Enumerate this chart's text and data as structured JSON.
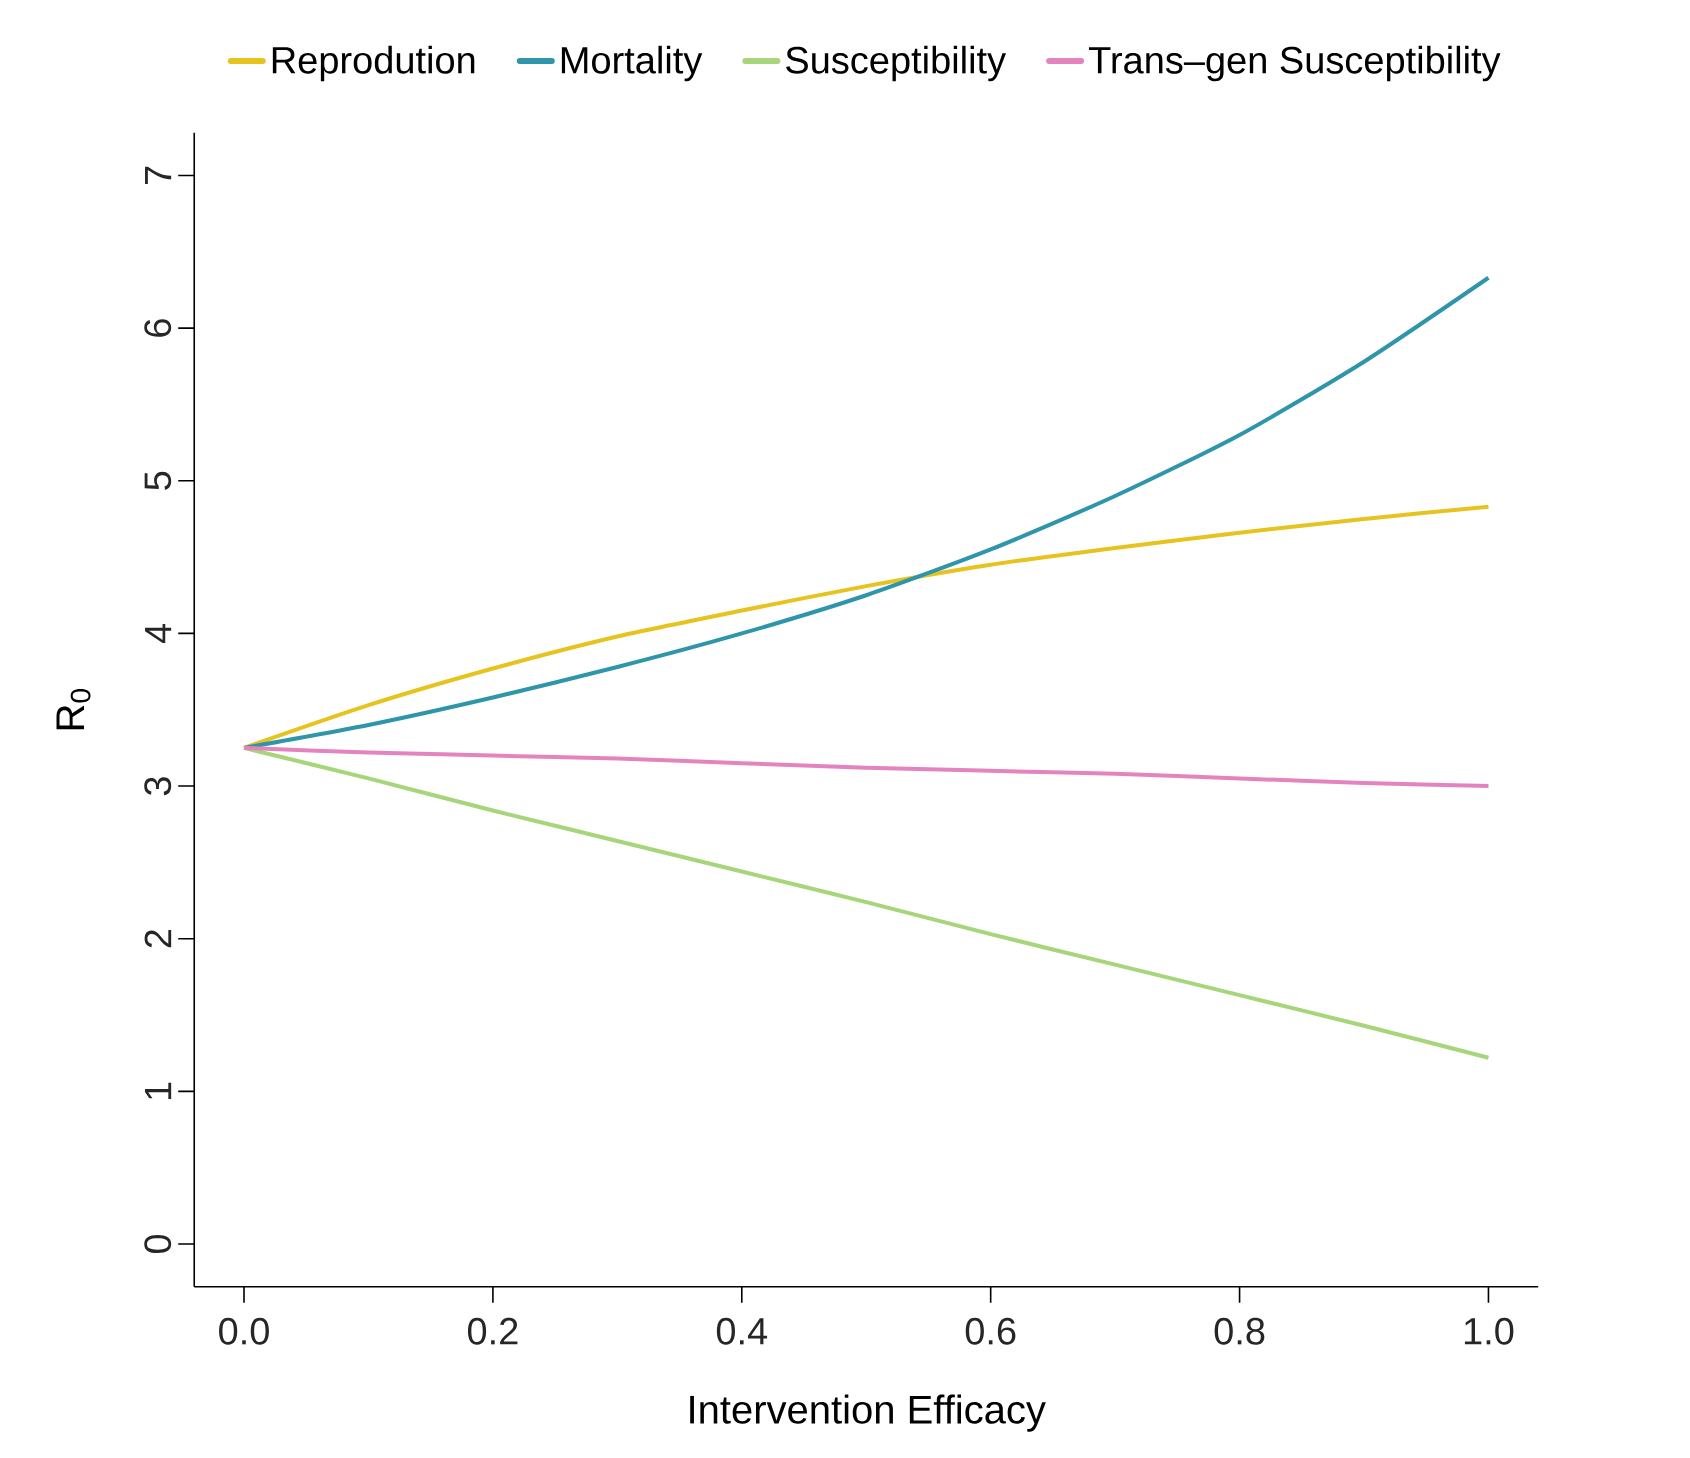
{
  "chart_data": {
    "type": "line",
    "xlabel": "Intervention Efficacy",
    "ylabel": "R$_{0}$",
    "legend": "top",
    "x": [
      0,
      0.1,
      0.2,
      0.3,
      0.4,
      0.5,
      0.6,
      0.7,
      0.8,
      0.9,
      1.0
    ],
    "xlim": [
      -0.04,
      1.04
    ],
    "ylim": [
      -0.28,
      7.28
    ],
    "xticks": [
      {
        "value": 0,
        "label": "0.0"
      },
      {
        "value": 0.2,
        "label": "0.2"
      },
      {
        "value": 0.4,
        "label": "0.4"
      },
      {
        "value": 0.6,
        "label": "0.6"
      },
      {
        "value": 0.8,
        "label": "0.8"
      },
      {
        "value": 1,
        "label": "1.0"
      }
    ],
    "yticks": [
      0,
      1,
      2,
      3,
      4,
      5,
      6,
      7
    ],
    "series": [
      {
        "name": "Reprodution",
        "color": "#e6c31f",
        "values": [
          3.25,
          3.53,
          3.77,
          3.98,
          4.15,
          4.31,
          4.45,
          4.56,
          4.66,
          4.75,
          4.83
        ]
      },
      {
        "name": "Mortality",
        "color": "#2e95ab",
        "values": [
          3.25,
          3.4,
          3.58,
          3.78,
          4.0,
          4.25,
          4.55,
          4.9,
          5.3,
          5.78,
          6.33
        ]
      },
      {
        "name": "Susceptibility",
        "color": "#a7d57a",
        "values": [
          3.25,
          3.05,
          2.84,
          2.64,
          2.44,
          2.24,
          2.03,
          1.83,
          1.63,
          1.43,
          1.22
        ]
      },
      {
        "name": "Trans–gen Susceptibility",
        "color": "#e384bf",
        "values": [
          3.25,
          3.22,
          3.2,
          3.18,
          3.15,
          3.12,
          3.1,
          3.08,
          3.05,
          3.02,
          3.0
        ]
      }
    ]
  }
}
